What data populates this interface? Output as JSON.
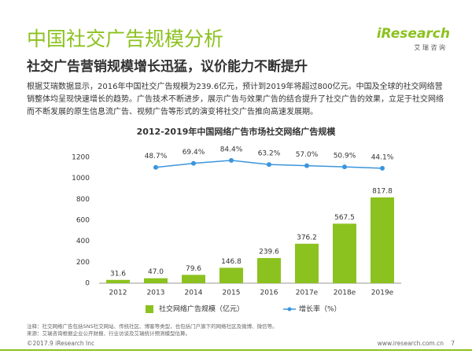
{
  "header": {
    "title": "中国社交广告规模分析",
    "logo": "iResearch",
    "logo_sub": "艾 瑞 咨 询",
    "subtitle": "社交广告营销规模增长迅猛，议价能力不断提升"
  },
  "paragraph": "根据艾瑞数据显示，2016年中国社交广告规模为239.6亿元，预计到2019年将超过800亿元。中国及全球的社交网络营销整体均呈现快速增长的趋势。广告技术不断进步，展示广告与效果广告的结合提升了社交广告的效果，立足于社交网络而不断发展的原生信息流广告、视频广告等形式的演变将社交广告推向高速发展期。",
  "chart_data": {
    "type": "bar",
    "title": "2012-2019年中国网络广告市场社交网络广告规模",
    "categories": [
      "2012",
      "2013",
      "2014",
      "2015",
      "2016",
      "2017e",
      "2018e",
      "2019e"
    ],
    "series": [
      {
        "name": "社交网络广告规模（亿元）",
        "color": "#8cc21f",
        "values": [
          31.6,
          47.0,
          79.6,
          146.8,
          239.6,
          376.2,
          567.5,
          817.8
        ],
        "value_labels": [
          "31.6",
          "47.0",
          "79.6",
          "146.8",
          "239.6",
          "376.2",
          "567.5",
          "817.8"
        ]
      },
      {
        "name": "增长率（%）",
        "color": "#3b95dc",
        "axis": "y2",
        "type": "line",
        "values": [
          null,
          48.7,
          69.4,
          84.4,
          63.2,
          57.0,
          50.9,
          44.1
        ],
        "value_labels": [
          null,
          "48.7%",
          "69.4%",
          "84.4%",
          "63.2%",
          "57.0%",
          "50.9%",
          "44.1%"
        ]
      }
    ],
    "ylim": [
      0,
      1200
    ],
    "yticks": [
      0,
      200,
      400,
      600,
      800,
      1000,
      1200
    ],
    "y2lim": [
      -545,
      100
    ],
    "grid": false,
    "legend": "bottom"
  },
  "footer": {
    "note": "注释：社交网络广告包括SNS社交网站、传统社区、博客等类型，也包括门户旗下的网络社区及微博、微信等。",
    "source": "来源：艾瑞咨询根据企业公开财报、行业访谈及艾瑞统计预测模型估算。",
    "copyright": "©2017.9 iResearch Inc",
    "website": "www.iresearch.com.cn",
    "page": "7"
  }
}
